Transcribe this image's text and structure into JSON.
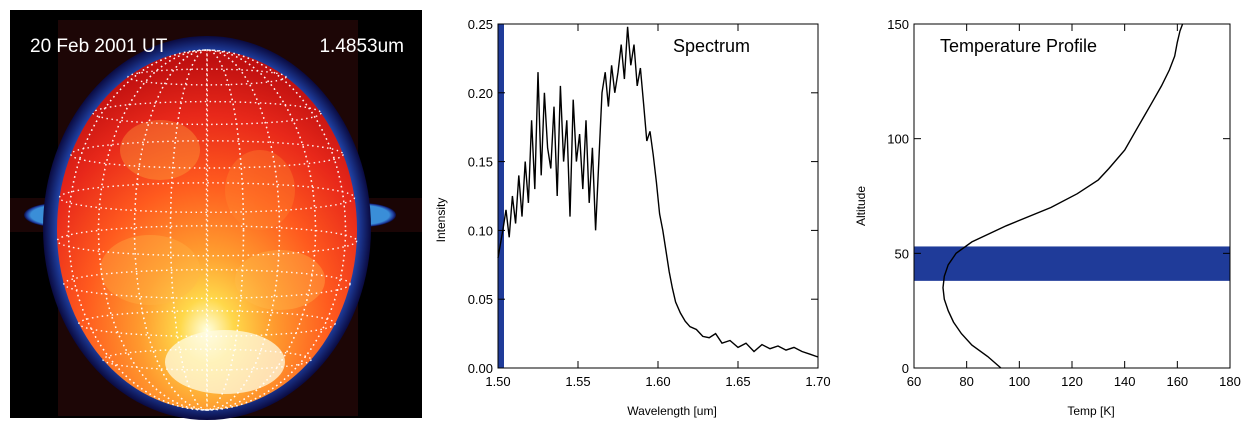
{
  "image_panel": {
    "date_label": "20 Feb 2001 UT",
    "wavelength_label": "1.4853um"
  },
  "colors": {
    "band": "#1f3b99",
    "line": "#000000",
    "axis": "#000000"
  },
  "chart_data": [
    {
      "type": "line",
      "title": "Spectrum",
      "xlabel": "Wavelength [um]",
      "ylabel": "Intensity",
      "xlim": [
        1.5,
        1.7
      ],
      "ylim": [
        0.0,
        0.25
      ],
      "xticks": [
        "1.50",
        "1.55",
        "1.60",
        "1.65",
        "1.70"
      ],
      "yticks": [
        "0.00",
        "0.05",
        "0.10",
        "0.15",
        "0.20",
        "0.25"
      ],
      "highlight_vline": 1.4853,
      "grid": false,
      "x": [
        1.5,
        1.503,
        1.505,
        1.507,
        1.509,
        1.511,
        1.513,
        1.515,
        1.517,
        1.519,
        1.521,
        1.523,
        1.525,
        1.527,
        1.529,
        1.531,
        1.533,
        1.535,
        1.537,
        1.539,
        1.541,
        1.543,
        1.545,
        1.547,
        1.549,
        1.551,
        1.553,
        1.555,
        1.557,
        1.559,
        1.561,
        1.563,
        1.565,
        1.567,
        1.569,
        1.571,
        1.573,
        1.575,
        1.577,
        1.579,
        1.581,
        1.583,
        1.585,
        1.587,
        1.589,
        1.591,
        1.593,
        1.595,
        1.597,
        1.599,
        1.601,
        1.603,
        1.605,
        1.607,
        1.609,
        1.611,
        1.614,
        1.617,
        1.62,
        1.624,
        1.628,
        1.632,
        1.636,
        1.64,
        1.645,
        1.65,
        1.655,
        1.66,
        1.665,
        1.67,
        1.675,
        1.68,
        1.685,
        1.69,
        1.695,
        1.7
      ],
      "y": [
        0.08,
        0.1,
        0.115,
        0.095,
        0.125,
        0.105,
        0.14,
        0.11,
        0.15,
        0.12,
        0.18,
        0.13,
        0.215,
        0.14,
        0.2,
        0.16,
        0.145,
        0.19,
        0.125,
        0.205,
        0.15,
        0.18,
        0.11,
        0.195,
        0.15,
        0.17,
        0.13,
        0.18,
        0.12,
        0.16,
        0.1,
        0.15,
        0.2,
        0.215,
        0.19,
        0.22,
        0.2,
        0.215,
        0.235,
        0.21,
        0.248,
        0.22,
        0.235,
        0.205,
        0.218,
        0.192,
        0.165,
        0.172,
        0.155,
        0.135,
        0.112,
        0.1,
        0.085,
        0.07,
        0.058,
        0.048,
        0.04,
        0.034,
        0.03,
        0.028,
        0.023,
        0.022,
        0.025,
        0.018,
        0.02,
        0.015,
        0.018,
        0.012,
        0.017,
        0.014,
        0.016,
        0.013,
        0.015,
        0.012,
        0.01,
        0.008
      ]
    },
    {
      "type": "line",
      "title": "Temperature Profile",
      "xlabel": "Temp [K]",
      "ylabel": "Altitude",
      "xlim": [
        60,
        180
      ],
      "ylim": [
        0,
        150
      ],
      "xticks": [
        "60",
        "80",
        "100",
        "120",
        "140",
        "160",
        "180"
      ],
      "yticks": [
        "0",
        "50",
        "100",
        "150"
      ],
      "highlight_band": [
        38,
        53
      ],
      "grid": false,
      "x": [
        93,
        88,
        82,
        78,
        75,
        73,
        71.5,
        71,
        71.5,
        73,
        76,
        82,
        95,
        112,
        122,
        130,
        134,
        140,
        145,
        150,
        154,
        157,
        159,
        160,
        161,
        162
      ],
      "y": [
        0,
        5,
        10,
        15,
        20,
        25,
        30,
        35,
        40,
        45,
        50,
        55,
        62,
        70,
        76,
        82,
        87,
        95,
        105,
        115,
        123,
        130,
        136,
        142,
        147,
        150
      ]
    }
  ]
}
